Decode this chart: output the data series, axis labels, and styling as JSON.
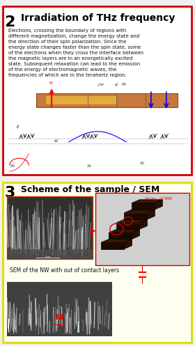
{
  "panel1": {
    "number": "2",
    "title": "Irradiation of THz frequency",
    "body_text": "Electrons, crossing the boundary of regions with\ndifferent magnetization, change the energy state and\nthe direction of their spin polarization. Since the\nenergy state changes faster than the spin state, some\nof the electrons when they cross the interface between\nthe magnetic layers are in an energetically excited\nstate. Subsequent relaxation can lead to the emission\nof the energy of electromagnetic waves, the\nfrequencies of which are in the terahertz region.",
    "bg_color": "#ffffff",
    "border_color": "#cc0000",
    "title_color": "#000000",
    "number_color": "#000000"
  },
  "panel2": {
    "number": "3",
    "title": "Scheme of the sample / SEM",
    "caption": "SEM of the NW with out of contact layers",
    "array_label": "Array  of NW",
    "ni_label": "Ni",
    "bg_color": "#fffff0",
    "border_color": "#dddd00",
    "title_color": "#000000"
  },
  "fig_width": 2.8,
  "fig_height": 4.97,
  "dpi": 100
}
